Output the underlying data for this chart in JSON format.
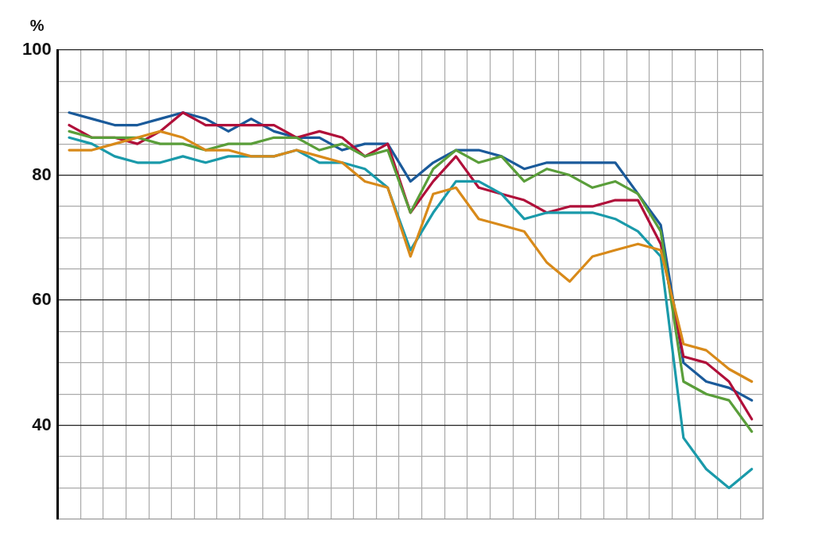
{
  "chart_data": {
    "type": "line",
    "ylabel": "%",
    "categories": [
      null,
      null,
      null,
      null,
      null,
      null,
      null,
      null,
      null,
      null,
      null,
      null,
      null,
      null,
      null,
      null,
      null,
      null,
      null,
      null,
      null,
      null,
      null,
      null,
      null,
      null,
      null,
      null,
      null,
      null,
      null
    ],
    "ylim": [
      25,
      100
    ],
    "yticks": [
      {
        "value": 25,
        "label": null
      },
      {
        "value": 30,
        "label": null
      },
      {
        "value": 35,
        "label": null
      },
      40,
      {
        "value": 45,
        "label": null
      },
      {
        "value": 50,
        "label": null
      },
      {
        "value": 55,
        "label": null
      },
      60,
      {
        "value": 65,
        "label": null
      },
      {
        "value": 70,
        "label": null
      },
      {
        "value": 75,
        "label": null
      },
      80,
      {
        "value": 85,
        "label": null
      },
      {
        "value": 90,
        "label": null
      },
      {
        "value": 95,
        "label": null
      },
      100
    ],
    "grid": true,
    "legend": false,
    "tick_labels": "y",
    "marker": "none",
    "line_style": "solid",
    "series": [
      {
        "color": "#1a5a9a",
        "values": [
          90,
          89,
          88,
          88,
          89,
          90,
          89,
          87,
          89,
          87,
          86,
          86,
          84,
          85,
          85,
          79,
          82,
          84,
          84,
          83,
          81,
          82,
          82,
          82,
          82,
          77,
          72,
          50,
          47,
          46,
          44
        ]
      },
      {
        "color": "#b0103a",
        "values": [
          88,
          86,
          86,
          85,
          87,
          90,
          88,
          88,
          88,
          88,
          86,
          87,
          86,
          83,
          85,
          74,
          79,
          83,
          78,
          77,
          76,
          74,
          75,
          75,
          76,
          76,
          69,
          51,
          50,
          47,
          41
        ]
      },
      {
        "color": "#5a9e3a",
        "values": [
          87,
          86,
          86,
          86,
          85,
          85,
          84,
          85,
          85,
          86,
          86,
          84,
          85,
          83,
          84,
          74,
          81,
          84,
          82,
          83,
          79,
          81,
          80,
          78,
          79,
          77,
          71,
          47,
          45,
          44,
          39
        ]
      },
      {
        "color": "#1a9aaa",
        "values": [
          86,
          85,
          83,
          82,
          82,
          83,
          82,
          83,
          83,
          83,
          84,
          82,
          82,
          81,
          78,
          68,
          74,
          79,
          79,
          77,
          73,
          74,
          74,
          74,
          73,
          71,
          67,
          38,
          33,
          30,
          33
        ]
      },
      {
        "color": "#d88a1a",
        "values": [
          84,
          84,
          85,
          86,
          87,
          86,
          84,
          84,
          83,
          83,
          84,
          83,
          82,
          79,
          78,
          67,
          77,
          78,
          73,
          72,
          71,
          66,
          63,
          67,
          68,
          69,
          68,
          53,
          52,
          49,
          47
        ]
      }
    ]
  }
}
